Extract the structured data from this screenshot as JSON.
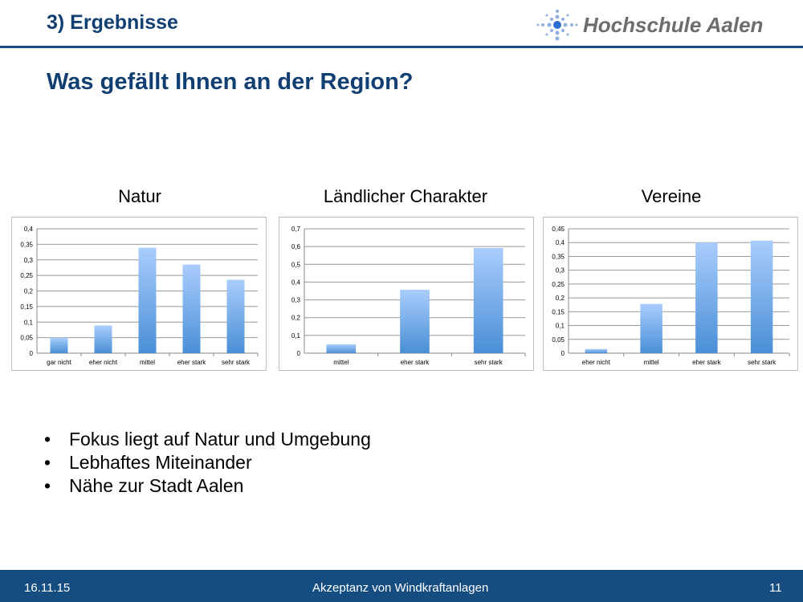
{
  "header": {
    "section": "3) Ergebnisse",
    "logo_text": "Hochschule Aalen"
  },
  "title": "Was gefällt Ihnen an der Region?",
  "bullets": [
    "Fokus liegt auf Natur und Umgebung",
    "Lebhaftes Miteinander",
    "Nähe zur Stadt Aalen"
  ],
  "footer": {
    "date": "16.11.15",
    "topic": "Akzeptanz von Windkraftanlagen",
    "page": "11"
  },
  "colors": {
    "brand": "#164d80",
    "bar_top": "#a9cdfc",
    "bar_bottom": "#4a8fd6"
  },
  "chart_data": [
    {
      "type": "bar",
      "title": "Natur",
      "categories": [
        "gar nicht",
        "eher nicht",
        "mittel",
        "eher stark",
        "sehr stark"
      ],
      "values": [
        0.05,
        0.089,
        0.339,
        0.285,
        0.236
      ],
      "ylim": [
        0,
        0.4
      ],
      "yticks": [
        "0",
        "0,05",
        "0,1",
        "0,15",
        "0,2",
        "0,25",
        "0,3",
        "0,35",
        "0,4"
      ],
      "grid": true
    },
    {
      "type": "bar",
      "title": "Ländlicher Charakter",
      "categories": [
        "mittel",
        "eher stark",
        "sehr stark"
      ],
      "values": [
        0.05,
        0.357,
        0.592
      ],
      "ylim": [
        0,
        0.7
      ],
      "yticks": [
        "0",
        "0,1",
        "0,2",
        "0,3",
        "0,4",
        "0,5",
        "0,6",
        "0,7"
      ],
      "grid": true
    },
    {
      "type": "bar",
      "title": "Vereine",
      "categories": [
        "eher nicht",
        "mittel",
        "eher stark",
        "sehr stark"
      ],
      "values": [
        0.015,
        0.178,
        0.4,
        0.407
      ],
      "ylim": [
        0,
        0.45
      ],
      "yticks": [
        "0",
        "0,05",
        "0,1",
        "0,15",
        "0,2",
        "0,25",
        "0,3",
        "0,35",
        "0,4",
        "0,45"
      ],
      "grid": true
    }
  ]
}
